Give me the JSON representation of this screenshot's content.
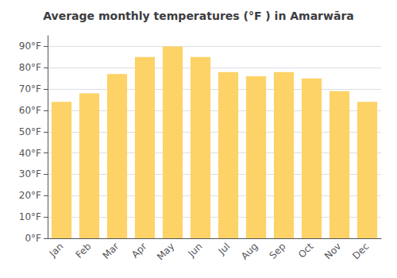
{
  "chart_data": {
    "type": "bar",
    "title": "Average monthly temperatures (°F ) in Amarwāra",
    "categories": [
      "Jan",
      "Feb",
      "Mar",
      "Apr",
      "May",
      "Jun",
      "Jul",
      "Aug",
      "Sep",
      "Oct",
      "Nov",
      "Dec"
    ],
    "values": [
      64,
      68,
      77,
      85,
      90,
      85,
      78,
      76,
      78,
      75,
      69,
      64
    ],
    "color": "#FDD267",
    "ylim": [
      0,
      95
    ],
    "yticks": [
      {
        "value": 0,
        "label": "0°F"
      },
      {
        "value": 10,
        "label": "10°F"
      },
      {
        "value": 20,
        "label": "20°F"
      },
      {
        "value": 30,
        "label": "30°F"
      },
      {
        "value": 40,
        "label": "40°F"
      },
      {
        "value": 50,
        "label": "50°F"
      },
      {
        "value": 60,
        "label": "60°F"
      },
      {
        "value": 70,
        "label": "70°F"
      },
      {
        "value": 80,
        "label": "80°F"
      },
      {
        "value": 90,
        "label": "90°F"
      }
    ],
    "grid": true
  }
}
